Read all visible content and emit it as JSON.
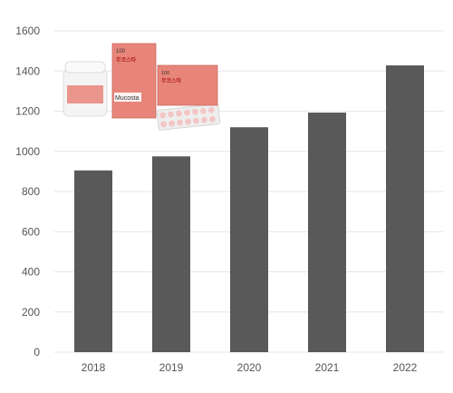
{
  "chart_data": {
    "type": "bar",
    "categories": [
      "2018",
      "2019",
      "2020",
      "2021",
      "2022"
    ],
    "values": [
      905,
      975,
      1120,
      1193,
      1428
    ],
    "ylim": [
      0,
      1600
    ],
    "yticks": [
      0,
      200,
      400,
      600,
      800,
      1000,
      1200,
      1400,
      1600
    ],
    "title": "",
    "xlabel": "",
    "ylabel": "",
    "grid": true,
    "bar_color": "#595959",
    "grid_color": "#e6e6e6"
  },
  "product_image": {
    "box_label_large": "무코스타",
    "box_label_small": "무코스타",
    "box_brand": "Mucosta",
    "box_dose": "100",
    "box_color": "#e8857a",
    "bottle_color": "#f4f4f4",
    "tablet_color": "#f3c6c6"
  }
}
